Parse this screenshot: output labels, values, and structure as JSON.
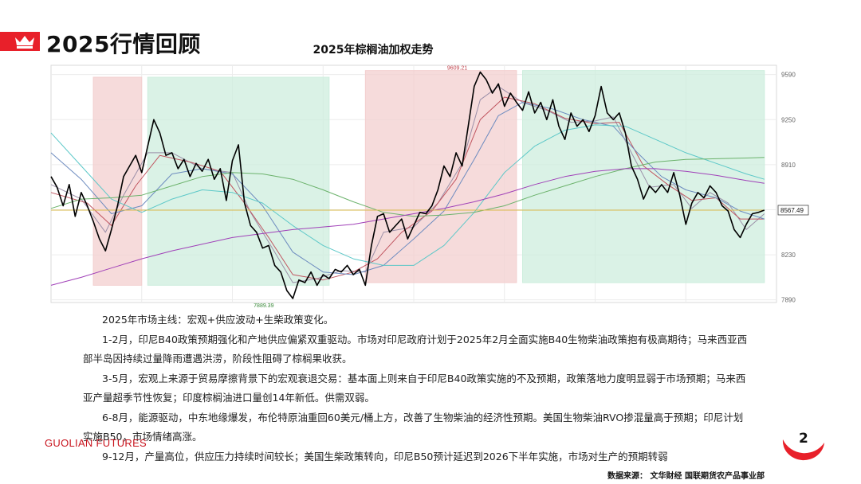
{
  "header": {
    "title": "2025行情回顾",
    "accent_color": "#e8202a",
    "icon": "crown-icon"
  },
  "chart_data": {
    "type": "line",
    "title": "2025年棕榈油加权走势",
    "y_ticks": [
      7890,
      8230,
      8570,
      8910,
      9250,
      9590
    ],
    "ylim": [
      7870,
      9660
    ],
    "x_range": [
      0,
      120
    ],
    "grid": true,
    "price_annotations": [
      {
        "label": "9609.21",
        "x": 70,
        "y": 9609
      },
      {
        "label": "7889.39",
        "x": 38,
        "y": 7889
      }
    ],
    "last_price": {
      "label": "8567.49",
      "y": 8567
    },
    "regions": [
      {
        "x0": 7,
        "x1": 15,
        "y0": 8000,
        "y1": 9570,
        "color": "#f3cfcf"
      },
      {
        "x0": 16,
        "x1": 46,
        "y0": 8000,
        "y1": 9570,
        "color": "#cdeedd"
      },
      {
        "x0": 52,
        "x1": 77,
        "y0": 8020,
        "y1": 9620,
        "color": "#f3cfcf"
      },
      {
        "x0": 78,
        "x1": 118,
        "y0": 8020,
        "y1": 9620,
        "color": "#cdeedd"
      }
    ],
    "series": [
      {
        "color": "#000000",
        "points": [
          [
            0,
            8820
          ],
          [
            1,
            8740
          ],
          [
            2,
            8600
          ],
          [
            3,
            8760
          ],
          [
            4,
            8520
          ],
          [
            5,
            8700
          ],
          [
            6,
            8600
          ],
          [
            7,
            8480
          ],
          [
            8,
            8350
          ],
          [
            9,
            8260
          ],
          [
            10,
            8420
          ],
          [
            11,
            8600
          ],
          [
            12,
            8820
          ],
          [
            13,
            8900
          ],
          [
            14,
            8980
          ],
          [
            15,
            8850
          ],
          [
            16,
            9050
          ],
          [
            17,
            9250
          ],
          [
            18,
            9150
          ],
          [
            19,
            8980
          ],
          [
            20,
            9000
          ],
          [
            21,
            8880
          ],
          [
            22,
            8950
          ],
          [
            23,
            8820
          ],
          [
            24,
            8920
          ],
          [
            25,
            8860
          ],
          [
            26,
            8950
          ],
          [
            27,
            8800
          ],
          [
            28,
            8880
          ],
          [
            29,
            8640
          ],
          [
            30,
            8940
          ],
          [
            31,
            9060
          ],
          [
            32,
            8620
          ],
          [
            33,
            8450
          ],
          [
            34,
            8400
          ],
          [
            35,
            8280
          ],
          [
            36,
            8300
          ],
          [
            37,
            8150
          ],
          [
            38,
            8100
          ],
          [
            39,
            7960
          ],
          [
            40,
            7900
          ],
          [
            41,
            8040
          ],
          [
            42,
            8020
          ],
          [
            43,
            8100
          ],
          [
            44,
            8000
          ],
          [
            45,
            8080
          ],
          [
            46,
            8050
          ],
          [
            47,
            8120
          ],
          [
            48,
            8100
          ],
          [
            49,
            8150
          ],
          [
            50,
            8080
          ],
          [
            51,
            8120
          ],
          [
            52,
            8000
          ],
          [
            53,
            8300
          ],
          [
            54,
            8520
          ],
          [
            55,
            8540
          ],
          [
            56,
            8400
          ],
          [
            57,
            8450
          ],
          [
            58,
            8500
          ],
          [
            59,
            8350
          ],
          [
            60,
            8450
          ],
          [
            61,
            8550
          ],
          [
            62,
            8540
          ],
          [
            63,
            8600
          ],
          [
            64,
            8720
          ],
          [
            65,
            8900
          ],
          [
            66,
            8820
          ],
          [
            67,
            9000
          ],
          [
            68,
            8900
          ],
          [
            69,
            9200
          ],
          [
            70,
            9500
          ],
          [
            71,
            9609
          ],
          [
            72,
            9550
          ],
          [
            73,
            9450
          ],
          [
            74,
            9520
          ],
          [
            75,
            9350
          ],
          [
            76,
            9450
          ],
          [
            77,
            9380
          ],
          [
            78,
            9320
          ],
          [
            79,
            9460
          ],
          [
            80,
            9300
          ],
          [
            81,
            9380
          ],
          [
            82,
            9250
          ],
          [
            83,
            9400
          ],
          [
            84,
            9200
          ],
          [
            85,
            9100
          ],
          [
            86,
            9300
          ],
          [
            87,
            9200
          ],
          [
            88,
            9250
          ],
          [
            89,
            9160
          ],
          [
            90,
            9280
          ],
          [
            91,
            9500
          ],
          [
            92,
            9300
          ],
          [
            93,
            9250
          ],
          [
            94,
            9300
          ],
          [
            95,
            9150
          ],
          [
            96,
            8900
          ],
          [
            97,
            8800
          ],
          [
            98,
            8650
          ],
          [
            99,
            8750
          ],
          [
            100,
            8700
          ],
          [
            101,
            8760
          ],
          [
            102,
            8700
          ],
          [
            103,
            8850
          ],
          [
            104,
            8680
          ],
          [
            105,
            8460
          ],
          [
            106,
            8620
          ],
          [
            107,
            8700
          ],
          [
            108,
            8660
          ],
          [
            109,
            8750
          ],
          [
            110,
            8700
          ],
          [
            111,
            8600
          ],
          [
            112,
            8560
          ],
          [
            113,
            8420
          ],
          [
            114,
            8360
          ],
          [
            115,
            8460
          ],
          [
            116,
            8540
          ],
          [
            117,
            8550
          ],
          [
            118,
            8567
          ]
        ]
      },
      {
        "color": "#9b8fa8",
        "points": [
          [
            0,
            8760
          ],
          [
            5,
            8650
          ],
          [
            9,
            8400
          ],
          [
            12,
            8680
          ],
          [
            16,
            9000
          ],
          [
            20,
            9000
          ],
          [
            25,
            8880
          ],
          [
            30,
            8850
          ],
          [
            33,
            8550
          ],
          [
            37,
            8250
          ],
          [
            40,
            8020
          ],
          [
            44,
            8050
          ],
          [
            48,
            8110
          ],
          [
            52,
            8100
          ],
          [
            55,
            8400
          ],
          [
            60,
            8440
          ],
          [
            64,
            8620
          ],
          [
            68,
            8920
          ],
          [
            71,
            9400
          ],
          [
            74,
            9500
          ],
          [
            78,
            9380
          ],
          [
            82,
            9320
          ],
          [
            86,
            9230
          ],
          [
            90,
            9240
          ],
          [
            93,
            9270
          ],
          [
            96,
            9000
          ],
          [
            99,
            8740
          ],
          [
            103,
            8760
          ],
          [
            106,
            8580
          ],
          [
            109,
            8700
          ],
          [
            112,
            8620
          ],
          [
            115,
            8420
          ],
          [
            118,
            8540
          ]
        ]
      },
      {
        "color": "#c0545f",
        "points": [
          [
            0,
            8700
          ],
          [
            6,
            8620
          ],
          [
            10,
            8450
          ],
          [
            14,
            8750
          ],
          [
            18,
            8980
          ],
          [
            23,
            8930
          ],
          [
            28,
            8860
          ],
          [
            32,
            8620
          ],
          [
            36,
            8360
          ],
          [
            40,
            8080
          ],
          [
            45,
            8040
          ],
          [
            50,
            8100
          ],
          [
            54,
            8200
          ],
          [
            58,
            8400
          ],
          [
            63,
            8560
          ],
          [
            67,
            8800
          ],
          [
            71,
            9250
          ],
          [
            75,
            9420
          ],
          [
            80,
            9370
          ],
          [
            85,
            9260
          ],
          [
            90,
            9220
          ],
          [
            94,
            9230
          ],
          [
            98,
            8900
          ],
          [
            102,
            8760
          ],
          [
            106,
            8640
          ],
          [
            110,
            8660
          ],
          [
            114,
            8500
          ],
          [
            118,
            8500
          ]
        ]
      },
      {
        "color": "#6d8bbf",
        "points": [
          [
            0,
            9000
          ],
          [
            5,
            8800
          ],
          [
            10,
            8540
          ],
          [
            15,
            8600
          ],
          [
            20,
            8840
          ],
          [
            25,
            8880
          ],
          [
            30,
            8840
          ],
          [
            35,
            8600
          ],
          [
            40,
            8250
          ],
          [
            45,
            8100
          ],
          [
            50,
            8080
          ],
          [
            55,
            8150
          ],
          [
            60,
            8350
          ],
          [
            65,
            8560
          ],
          [
            70,
            8950
          ],
          [
            74,
            9280
          ],
          [
            78,
            9380
          ],
          [
            83,
            9330
          ],
          [
            88,
            9250
          ],
          [
            93,
            9200
          ],
          [
            97,
            9000
          ],
          [
            101,
            8820
          ],
          [
            105,
            8720
          ],
          [
            110,
            8660
          ],
          [
            114,
            8560
          ],
          [
            118,
            8500
          ]
        ]
      },
      {
        "color": "#5cc8c8",
        "points": [
          [
            0,
            9150
          ],
          [
            5,
            8900
          ],
          [
            10,
            8650
          ],
          [
            15,
            8550
          ],
          [
            20,
            8650
          ],
          [
            25,
            8720
          ],
          [
            30,
            8700
          ],
          [
            35,
            8620
          ],
          [
            40,
            8450
          ],
          [
            45,
            8300
          ],
          [
            50,
            8200
          ],
          [
            55,
            8150
          ],
          [
            60,
            8150
          ],
          [
            65,
            8300
          ],
          [
            70,
            8550
          ],
          [
            75,
            8850
          ],
          [
            80,
            9050
          ],
          [
            85,
            9170
          ],
          [
            90,
            9210
          ],
          [
            95,
            9200
          ],
          [
            100,
            9100
          ],
          [
            105,
            9000
          ],
          [
            110,
            8920
          ],
          [
            115,
            8840
          ],
          [
            118,
            8800
          ]
        ]
      },
      {
        "color": "#6bb26b",
        "points": [
          [
            0,
            8580
          ],
          [
            5,
            8650
          ],
          [
            10,
            8660
          ],
          [
            15,
            8680
          ],
          [
            20,
            8750
          ],
          [
            25,
            8820
          ],
          [
            30,
            8850
          ],
          [
            35,
            8840
          ],
          [
            40,
            8800
          ],
          [
            45,
            8720
          ],
          [
            50,
            8630
          ],
          [
            55,
            8550
          ],
          [
            60,
            8520
          ],
          [
            65,
            8530
          ],
          [
            70,
            8550
          ],
          [
            75,
            8600
          ],
          [
            80,
            8680
          ],
          [
            85,
            8750
          ],
          [
            90,
            8820
          ],
          [
            95,
            8880
          ],
          [
            100,
            8930
          ],
          [
            105,
            8950
          ],
          [
            110,
            8955
          ],
          [
            115,
            8960
          ],
          [
            118,
            8965
          ]
        ]
      },
      {
        "color": "#a040b8",
        "points": [
          [
            0,
            8000
          ],
          [
            5,
            8060
          ],
          [
            10,
            8130
          ],
          [
            15,
            8200
          ],
          [
            20,
            8260
          ],
          [
            25,
            8310
          ],
          [
            30,
            8360
          ],
          [
            35,
            8390
          ],
          [
            40,
            8420
          ],
          [
            45,
            8440
          ],
          [
            50,
            8460
          ],
          [
            55,
            8500
          ],
          [
            60,
            8540
          ],
          [
            65,
            8580
          ],
          [
            70,
            8630
          ],
          [
            75,
            8690
          ],
          [
            80,
            8760
          ],
          [
            85,
            8820
          ],
          [
            90,
            8860
          ],
          [
            95,
            8880
          ],
          [
            100,
            8880
          ],
          [
            105,
            8860
          ],
          [
            110,
            8830
          ],
          [
            115,
            8790
          ],
          [
            118,
            8770
          ]
        ]
      },
      {
        "color": "#d9b84a",
        "points": [
          [
            0,
            8567
          ],
          [
            118,
            8567
          ]
        ]
      }
    ]
  },
  "body_text": [
    "2025年市场主线：宏观+供应波动+生柴政策变化。",
    "1-2月，印尼B40政策预期强化和产地供应偏紧双重驱动。市场对印尼政府计划于2025年2月全面实施B40生物柴油政策抱有极高期待；马来西亚西",
    "部半岛因持续过量降雨遭遇洪涝，阶段性阻碍了棕榈果收获。",
    "3-5月，宏观上来源于贸易摩擦背景下的宏观衰退交易：基本面上则来自于印尼B40政策实施的不及预期，政策落地力度明显弱于市场预期；马来西",
    "亚产量超季节性恢复；印度棕榈油进口量创14年新低。供需双弱。",
    "6-8月，能源驱动，中东地缘爆发，布伦特原油重回60美元/桶上方，改善了生物柴油的经济性预期。美国生物柴油RVO掺混量高于预期；印尼计划",
    "实施B50，市场情绪高涨。",
    "9-12月，产量高位，供应压力持续时间较长；美国生柴政策转向，印尼B50预计延迟到2026下半年实施，市场对生产的预期转弱"
  ],
  "footer": {
    "brand_bold": "GUOLIAN",
    "brand_thin": " FUTURES",
    "page_number": "2",
    "source": "数据来源： 文华财经  国联期货农产品事业部"
  }
}
